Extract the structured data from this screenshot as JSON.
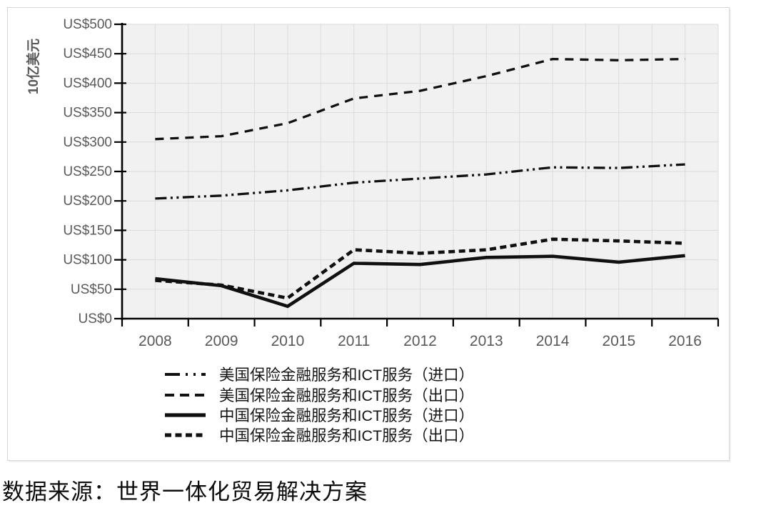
{
  "chart_data": {
    "type": "line",
    "title": "",
    "xlabel": "",
    "ylabel": "10亿美元",
    "ylim": [
      0,
      500
    ],
    "ytick_step": 50,
    "ytick_labels": [
      "US$0",
      "US$50",
      "US$100",
      "US$150",
      "US$200",
      "US$250",
      "US$300",
      "US$350",
      "US$400",
      "US$450",
      "US$500"
    ],
    "categories": [
      "2008",
      "2009",
      "2010",
      "2011",
      "2012",
      "2013",
      "2014",
      "2015",
      "2016"
    ],
    "series": [
      {
        "name": "美国保险金融服务和ICT服务（进口）",
        "line_style": "dash-dot-dot",
        "values": [
          204,
          209,
          218,
          231,
          238,
          245,
          257,
          256,
          262
        ]
      },
      {
        "name": "美国保险金融服务和ICT服务（出口）",
        "line_style": "dashed",
        "values": [
          305,
          310,
          332,
          374,
          387,
          412,
          441,
          439,
          441
        ]
      },
      {
        "name": "中国保险金融服务和ICT服务（进口）",
        "line_style": "solid",
        "values": [
          68,
          56,
          21,
          94,
          92,
          104,
          106,
          96,
          107
        ]
      },
      {
        "name": "中国保险金融服务和ICT服务（出口）",
        "line_style": "dense-dashed",
        "values": [
          65,
          57,
          35,
          117,
          111,
          117,
          135,
          132,
          128
        ]
      }
    ],
    "legend_position": "bottom-inside",
    "grid": true,
    "line_color": "#101010",
    "axis_color": "#000000",
    "axis_label_color": "#595959",
    "plot_bg": "#f1f1f1",
    "grid_color": "#dcdcdc"
  },
  "source": {
    "text": "数据来源：世界一体化贸易解决方案"
  }
}
